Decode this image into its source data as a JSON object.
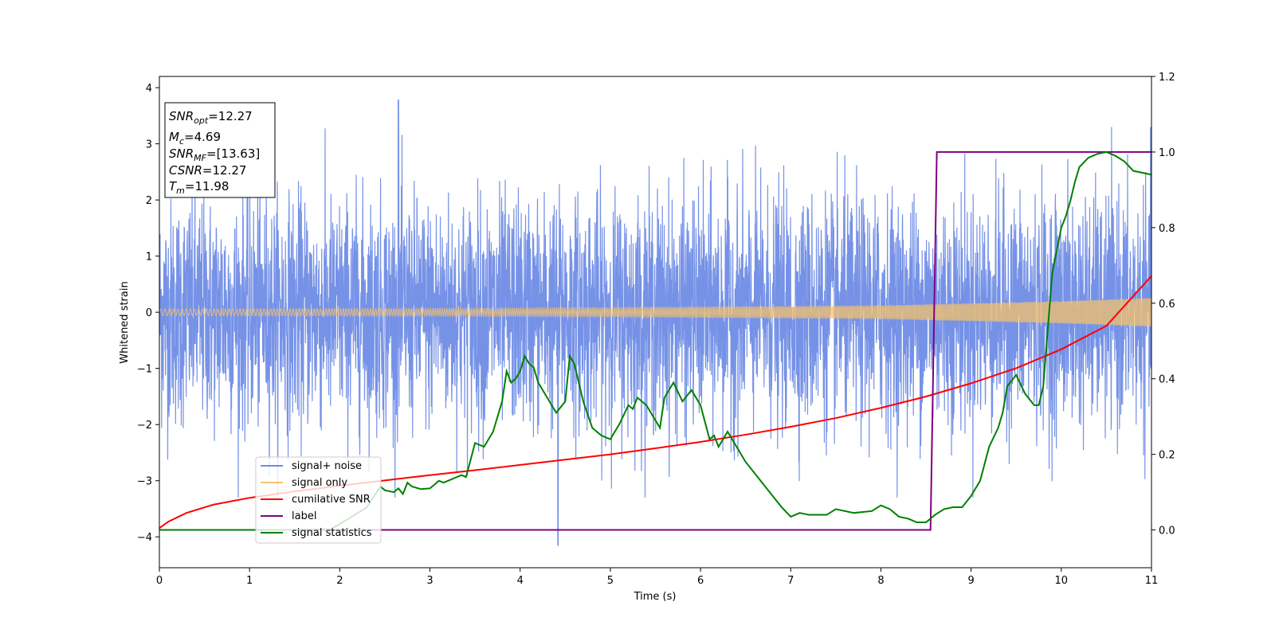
{
  "chart_data": {
    "type": "line",
    "xlabel": "Time (s)",
    "ylabel": "Whitened strain",
    "xlim": [
      0,
      11
    ],
    "ylim_left": [
      -4.55,
      4.2
    ],
    "ylim_right": [
      -0.1,
      1.2
    ],
    "x_ticks": [
      "0",
      "1",
      "2",
      "3",
      "4",
      "5",
      "6",
      "7",
      "8",
      "9",
      "10",
      "11"
    ],
    "y_ticks_left": [
      "−4",
      "−3",
      "−2",
      "−1",
      "0",
      "1",
      "2",
      "3",
      "4"
    ],
    "y_ticks_right": [
      "0.0",
      "0.2",
      "0.4",
      "0.6",
      "0.8",
      "1.0",
      "1.2"
    ],
    "stats_box": [
      {
        "sym": "SNR",
        "sub": "opt",
        "value": "=12.27"
      },
      {
        "sym": "M",
        "sub": "c",
        "value": "=4.69"
      },
      {
        "sym": "SNR",
        "sub": "MF",
        "value": "=[13.63]"
      },
      {
        "sym": "CSNR",
        "sub": "",
        "value": "=12.27"
      },
      {
        "sym": "T",
        "sub": "m",
        "value": "=11.98"
      }
    ],
    "series": [
      {
        "name": "signal+ noise",
        "color": "#6f8ce6",
        "axis": "left",
        "style": "noise",
        "description_values": {
          "sigma": 1.0,
          "min": -4.15,
          "max": 3.78,
          "max_at": 2.65,
          "min_at": 4.42
        }
      },
      {
        "name": "signal only",
        "color": "#f5c26b",
        "axis": "left",
        "style": "chirp",
        "amplitude": [
          [
            0,
            0.06
          ],
          [
            4,
            0.07
          ],
          [
            8,
            0.12
          ],
          [
            9,
            0.16
          ],
          [
            10,
            0.2
          ],
          [
            11,
            0.26
          ]
        ]
      },
      {
        "name": "cumilative SNR",
        "color": "#ff0000",
        "axis": "right",
        "x": [
          0,
          0.1,
          0.3,
          0.6,
          1,
          1.5,
          2,
          2.5,
          3,
          3.5,
          4,
          4.5,
          5,
          5.5,
          6,
          6.5,
          7,
          7.5,
          8,
          8.5,
          9,
          9.5,
          10,
          10.5,
          11
        ],
        "values": [
          0.005,
          0.022,
          0.045,
          0.067,
          0.085,
          0.102,
          0.117,
          0.131,
          0.145,
          0.158,
          0.172,
          0.186,
          0.2,
          0.216,
          0.233,
          0.252,
          0.273,
          0.296,
          0.323,
          0.353,
          0.388,
          0.428,
          0.478,
          0.54,
          0.672
        ]
      },
      {
        "name": "label",
        "color": "#800080",
        "axis": "right",
        "x": [
          0,
          8.55,
          8.62,
          11
        ],
        "values": [
          0.0,
          0.0,
          1.0,
          1.0
        ]
      },
      {
        "name": "signal statistics",
        "color": "#008000",
        "axis": "right",
        "x": [
          0,
          1.0,
          1.5,
          1.9,
          2.1,
          2.3,
          2.45,
          2.5,
          2.6,
          2.65,
          2.7,
          2.75,
          2.8,
          2.9,
          3.0,
          3.1,
          3.15,
          3.25,
          3.35,
          3.4,
          3.45,
          3.5,
          3.6,
          3.7,
          3.8,
          3.85,
          3.9,
          3.95,
          4.0,
          4.05,
          4.1,
          4.15,
          4.2,
          4.3,
          4.4,
          4.5,
          4.55,
          4.6,
          4.7,
          4.8,
          4.9,
          5.0,
          5.1,
          5.2,
          5.25,
          5.3,
          5.4,
          5.5,
          5.55,
          5.6,
          5.7,
          5.8,
          5.9,
          6.0,
          6.1,
          6.15,
          6.2,
          6.3,
          6.4,
          6.5,
          6.6,
          6.7,
          6.8,
          6.9,
          7.0,
          7.1,
          7.2,
          7.3,
          7.4,
          7.5,
          7.7,
          7.9,
          8.0,
          8.1,
          8.2,
          8.3,
          8.4,
          8.5,
          8.6,
          8.7,
          8.8,
          8.9,
          9.0,
          9.1,
          9.2,
          9.3,
          9.35,
          9.4,
          9.5,
          9.6,
          9.7,
          9.75,
          9.8,
          9.85,
          9.9,
          10.0,
          10.05,
          10.1,
          10.15,
          10.2,
          10.3,
          10.4,
          10.5,
          10.6,
          10.7,
          10.8,
          10.9,
          11.0
        ],
        "values": [
          0.0,
          0.0,
          0.0,
          0.002,
          0.03,
          0.06,
          0.115,
          0.105,
          0.1,
          0.11,
          0.095,
          0.125,
          0.115,
          0.108,
          0.11,
          0.13,
          0.125,
          0.135,
          0.145,
          0.14,
          0.185,
          0.23,
          0.22,
          0.26,
          0.34,
          0.42,
          0.39,
          0.4,
          0.42,
          0.46,
          0.44,
          0.43,
          0.39,
          0.35,
          0.31,
          0.34,
          0.46,
          0.44,
          0.34,
          0.27,
          0.25,
          0.24,
          0.28,
          0.33,
          0.32,
          0.35,
          0.33,
          0.29,
          0.27,
          0.35,
          0.39,
          0.34,
          0.37,
          0.33,
          0.24,
          0.25,
          0.22,
          0.26,
          0.22,
          0.18,
          0.15,
          0.12,
          0.09,
          0.06,
          0.035,
          0.045,
          0.04,
          0.04,
          0.04,
          0.055,
          0.045,
          0.05,
          0.065,
          0.055,
          0.035,
          0.03,
          0.02,
          0.02,
          0.04,
          0.055,
          0.06,
          0.06,
          0.09,
          0.13,
          0.22,
          0.27,
          0.31,
          0.38,
          0.41,
          0.36,
          0.33,
          0.33,
          0.38,
          0.53,
          0.68,
          0.8,
          0.83,
          0.87,
          0.92,
          0.96,
          0.985,
          0.995,
          1.0,
          0.99,
          0.975,
          0.95,
          0.945,
          0.94
        ]
      }
    ],
    "legend_position": "lower-left"
  }
}
